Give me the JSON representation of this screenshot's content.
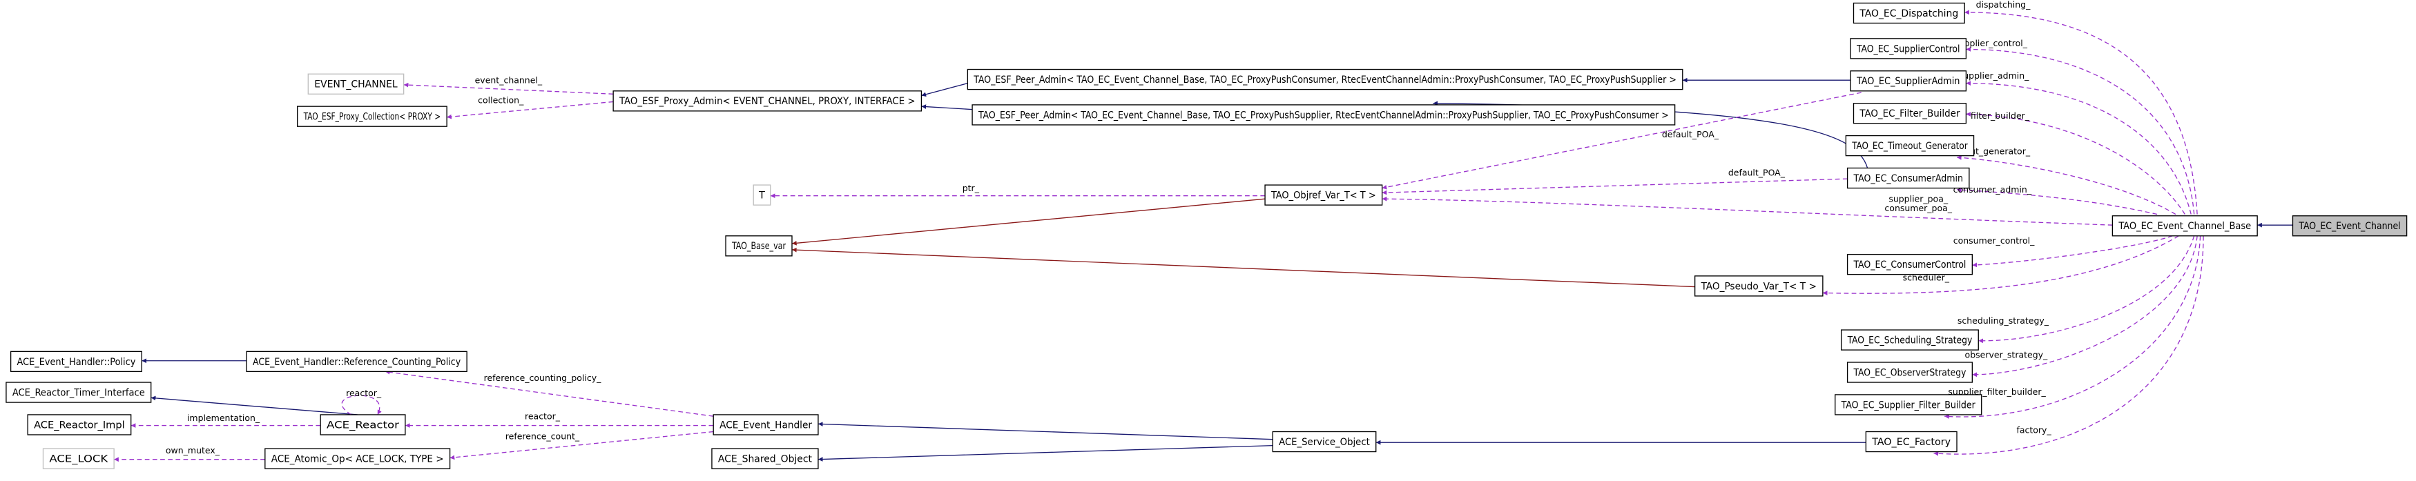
{
  "colors": {
    "inheritance": "#191970",
    "template": "#8b1a1a",
    "usage": "#9a32cd",
    "focus_fill": "#bfbfbf",
    "undocumented_border": "#bfbfbf"
  },
  "nodes": {
    "ec": "TAO_EC_Event_Channel",
    "base": "TAO_EC_Event_Channel_Base",
    "dispatching": "TAO_EC_Dispatching",
    "supctl": "TAO_EC_SupplierControl",
    "supadmin": "TAO_EC_SupplierAdmin",
    "filterb": "TAO_EC_Filter_Builder",
    "timeout": "TAO_EC_Timeout_Generator",
    "conadmin": "TAO_EC_ConsumerAdmin",
    "conctl": "TAO_EC_ConsumerControl",
    "pseudo": "TAO_Pseudo_Var_T< T >",
    "sched": "TAO_EC_Scheduling_Strategy",
    "observer": "TAO_EC_ObserverStrategy",
    "supfb": "TAO_EC_Supplier_Filter_Builder",
    "factory": "TAO_EC_Factory",
    "peer1": "TAO_ESF_Peer_Admin< TAO_EC_Event_Channel_Base, TAO_EC_ProxyPushConsumer, RtecEventChannelAdmin::ProxyPushConsumer, TAO_EC_ProxyPushSupplier >",
    "peer2": "TAO_ESF_Peer_Admin< TAO_EC_Event_Channel_Base, TAO_EC_ProxyPushSupplier, RtecEventChannelAdmin::ProxyPushSupplier, TAO_EC_ProxyPushConsumer >",
    "proxyadmin": "TAO_ESF_Proxy_Admin< EVENT_CHANNEL, PROXY, INTERFACE >",
    "evchan": "EVENT_CHANNEL",
    "collection": "TAO_ESF_Proxy_Collection< PROXY >",
    "t": "T",
    "objref": "TAO_Objref_Var_T< T >",
    "basevar": "TAO_Base_var",
    "policy": "ACE_Event_Handler::Policy",
    "rcpolicy": "ACE_Event_Handler::Reference_Counting_Policy",
    "timerif": "ACE_Reactor_Timer_Interface",
    "reactorimpl": "ACE_Reactor_Impl",
    "reactor": "ACE_Reactor",
    "lock": "ACE_LOCK",
    "atomic": "ACE_Atomic_Op< ACE_LOCK, TYPE >",
    "evhandler": "ACE_Event_Handler",
    "shared": "ACE_Shared_Object",
    "service": "ACE_Service_Object"
  },
  "edge_labels": {
    "event_channel": "event_channel_",
    "collection": "collection_",
    "ptr": "ptr_",
    "default_poa_sup": "default_POA_",
    "default_poa_con": "default_POA_",
    "supplier_poa": "supplier_poa_",
    "consumer_poa": "consumer_poa_",
    "dispatching": "dispatching_",
    "supplier_control": "supplier_control_",
    "supplier_admin": "supplier_admin_",
    "filter_builder": "filter_builder_",
    "timeout_generator": "timeout_generator_",
    "consumer_admin": "consumer_admin_",
    "consumer_control": "consumer_control_",
    "scheduler": "scheduler_",
    "scheduling_strategy": "scheduling_strategy_",
    "observer_strategy": "observer_strategy_",
    "supplier_filter_builder": "supplier_filter_builder_",
    "factory": "factory_",
    "reference_counting_policy": "reference_counting_policy_",
    "reactor_eh": "reactor_",
    "reference_count": "reference_count_",
    "reactor_self": "reactor_",
    "implementation": "implementation_",
    "own_mutex": "own_mutex_"
  }
}
